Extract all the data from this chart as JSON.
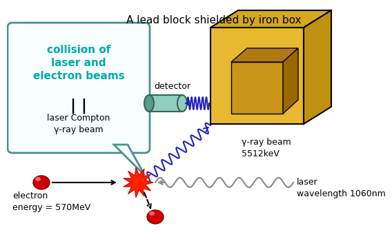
{
  "title": "A lead block shielded by iron box",
  "title_fontsize": 11,
  "bubble_text": "collision of\nlaser and\nelectron beams",
  "bubble_text_color": "#00AAAA",
  "beam_label": "laser Compton\nγ-ray beam",
  "detector_label": "detector",
  "gamma_ray_label": "γ-ray beam\n5512keV",
  "laser_label": "laser\nwavelength 1060nm",
  "electron_label": "electron\nenergy = 570MeV",
  "bg_color": "#FFFFFF",
  "bubble_edge_color": "#4A9090",
  "bubble_fill": "#F8FEFE",
  "box_face": "#E8B830",
  "box_top": "#D4A820",
  "box_right": "#C09010",
  "box_edge": "#000000",
  "cube_face": "#C8941A",
  "cube_top": "#B07A10",
  "cube_right": "#9A6800",
  "detector_body": "#8FCFBF",
  "detector_dark": "#5A9A8A",
  "detector_edge": "#336655",
  "electron_color": "#CC0000",
  "electron_hi": "#FF6666",
  "gamma_wave_color": "#2222BB",
  "laser_wave_color": "#888888",
  "arrow_color": "#000000",
  "star_color": "#FF2200"
}
